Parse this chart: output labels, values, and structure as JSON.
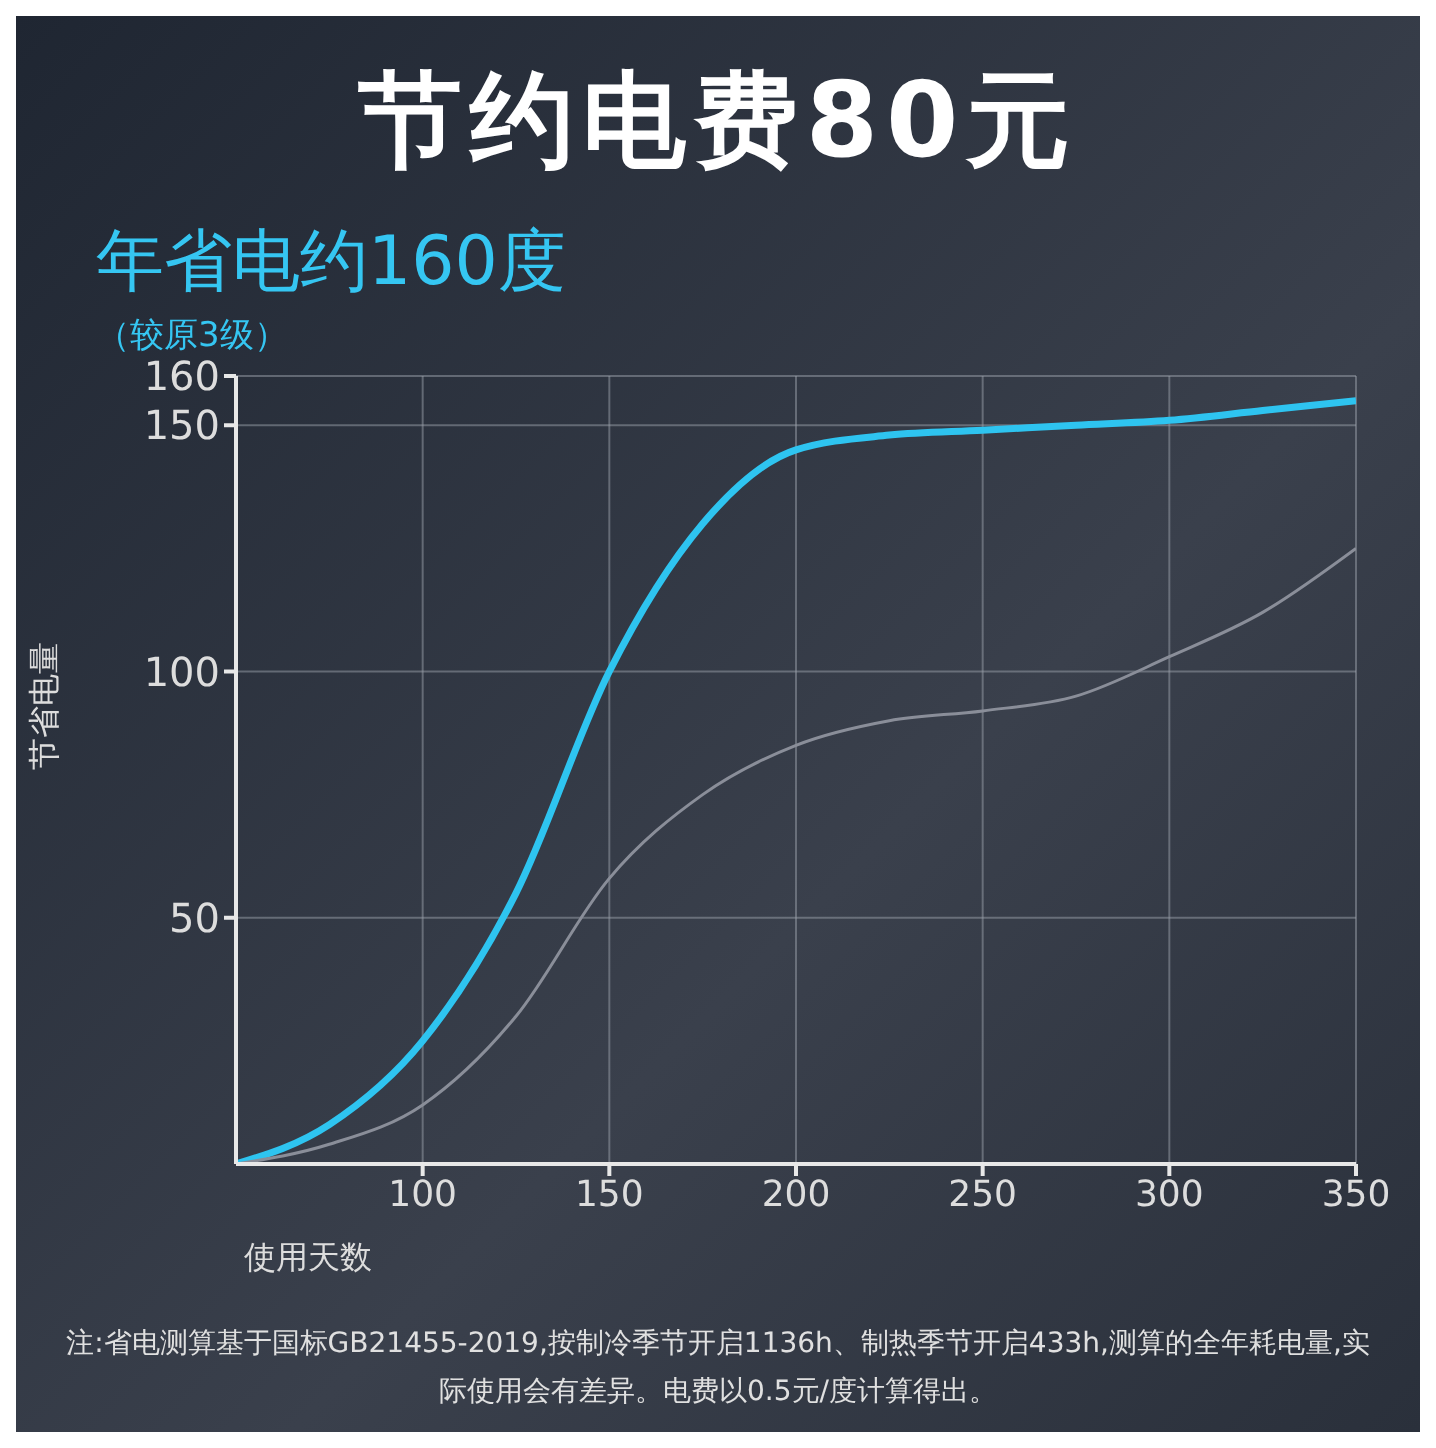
{
  "chart_data": {
    "type": "line",
    "title": "节约电费80元",
    "subtitle": "年省电约160度",
    "annotations": [
      "（较原3级）",
      "注:省电测算基于国标GB21455-2019,按制冷季节开启1136h、制热季节开启433h,测算的全年耗电量,实际使用会有差异。电费以0.5元/度计算得出。"
    ],
    "xlabel": "使用天数",
    "ylabel": "节省电量",
    "x": [
      50,
      75,
      100,
      125,
      150,
      175,
      200,
      225,
      250,
      275,
      300,
      325,
      350
    ],
    "series": [
      {
        "color": "#2ec4f0",
        "values": [
          0,
          8,
          25,
          55,
          100,
          130,
          145,
          148,
          149,
          150,
          151,
          153,
          155
        ]
      },
      {
        "color": "#8a8e99",
        "values": [
          0,
          4,
          12,
          30,
          58,
          75,
          85,
          90,
          92,
          95,
          103,
          112,
          125
        ]
      }
    ],
    "xlim": [
      50,
      350
    ],
    "xticks": [
      100,
      150,
      200,
      250,
      300,
      350
    ],
    "ylim": [
      0,
      160
    ],
    "yticks": [
      50,
      100,
      150,
      160
    ],
    "grid": true,
    "legend": false,
    "marker": "none",
    "line_style": "solid"
  }
}
